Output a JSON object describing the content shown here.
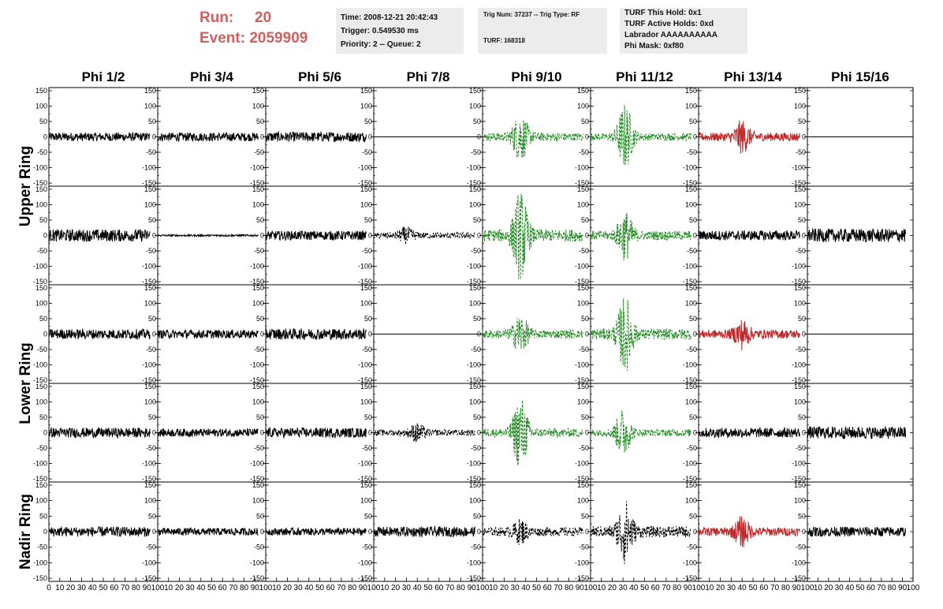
{
  "header": {
    "run_label": "Run:",
    "run_value": "20",
    "event_label": "Event:",
    "event_value": "2059909",
    "time": "Time: 2008-12-21 20:42:43",
    "trigger": "Trigger: 0.549530 ms",
    "priority": "Priority: 2 -- Queue: 2",
    "trig_num": "Trig Num: 37237 -- Trig Type: RF",
    "turf": "TURF: 168318",
    "turf_this_hold": "TURF This Hold: 0x1",
    "turf_active_holds": "TURF Active Holds: 0xd",
    "labrador": "Labrador AAAAAAAAAA",
    "phi_mask": "Phi Mask: 0xf80"
  },
  "chart_data": {
    "type": "line",
    "columns": [
      "Phi 1/2",
      "Phi 3/4",
      "Phi 5/6",
      "Phi 7/8",
      "Phi 9/10",
      "Phi 11/12",
      "Phi 13/14",
      "Phi 15/16"
    ],
    "ring_labels": [
      "Upper Ring",
      "Lower Ring",
      "Nadir Ring"
    ],
    "ylim": [
      -160,
      160
    ],
    "yticks": [
      -150,
      -100,
      -50,
      0,
      50,
      100,
      150
    ],
    "xlim": [
      0,
      100
    ],
    "xticks": [
      0,
      10,
      20,
      30,
      40,
      50,
      60,
      70,
      80,
      90,
      100
    ],
    "colors": {
      "normal": "#000000",
      "triggered": "#228b22",
      "masked": "#c0282a"
    },
    "rows": [
      {
        "ring": "Upper Ring",
        "panels": [
          {
            "style": "solid",
            "color": "normal",
            "amp": 14,
            "burst": 0,
            "center": 0
          },
          {
            "style": "solid",
            "color": "normal",
            "amp": 14,
            "burst": 0,
            "center": 0
          },
          {
            "style": "solid",
            "color": "normal",
            "amp": 16,
            "burst": 0,
            "center": 0
          },
          {
            "style": "flat",
            "color": "normal",
            "amp": 0,
            "burst": 0,
            "center": 0
          },
          {
            "style": "dashed",
            "color": "triggered",
            "amp": 14,
            "burst": 70,
            "center": 35
          },
          {
            "style": "dashed",
            "color": "triggered",
            "amp": 12,
            "burst": 100,
            "center": 32
          },
          {
            "style": "solid",
            "color": "masked",
            "amp": 14,
            "burst": 45,
            "center": 40
          },
          {
            "style": "flat",
            "color": "normal",
            "amp": 0,
            "burst": 0,
            "center": 0
          }
        ]
      },
      {
        "ring": "Upper Ring",
        "panels": [
          {
            "style": "solid",
            "color": "normal",
            "amp": 20,
            "burst": 0,
            "center": 0
          },
          {
            "style": "solid",
            "color": "normal",
            "amp": 3,
            "burst": 0,
            "center": 0
          },
          {
            "style": "solid",
            "color": "normal",
            "amp": 15,
            "burst": 0,
            "center": 0
          },
          {
            "style": "dashed",
            "color": "normal",
            "amp": 10,
            "burst": 20,
            "center": 30
          },
          {
            "style": "dashed",
            "color": "triggered",
            "amp": 20,
            "burst": 130,
            "center": 35
          },
          {
            "style": "dashed",
            "color": "triggered",
            "amp": 15,
            "burst": 70,
            "center": 32
          },
          {
            "style": "solid",
            "color": "normal",
            "amp": 16,
            "burst": 0,
            "center": 0
          },
          {
            "style": "solid",
            "color": "normal",
            "amp": 22,
            "burst": 0,
            "center": 0
          }
        ]
      },
      {
        "ring": "Lower Ring",
        "panels": [
          {
            "style": "solid",
            "color": "normal",
            "amp": 16,
            "burst": 0,
            "center": 0
          },
          {
            "style": "solid",
            "color": "normal",
            "amp": 14,
            "burst": 0,
            "center": 0
          },
          {
            "style": "solid",
            "color": "normal",
            "amp": 18,
            "burst": 0,
            "center": 0
          },
          {
            "style": "flat",
            "color": "normal",
            "amp": 0,
            "burst": 0,
            "center": 0
          },
          {
            "style": "dashed",
            "color": "triggered",
            "amp": 14,
            "burst": 55,
            "center": 35
          },
          {
            "style": "dashed",
            "color": "triggered",
            "amp": 18,
            "burst": 110,
            "center": 32
          },
          {
            "style": "solid",
            "color": "masked",
            "amp": 14,
            "burst": 40,
            "center": 40
          },
          {
            "style": "flat",
            "color": "normal",
            "amp": 0,
            "burst": 0,
            "center": 0
          }
        ]
      },
      {
        "ring": "Lower Ring",
        "panels": [
          {
            "style": "solid",
            "color": "normal",
            "amp": 16,
            "burst": 0,
            "center": 0
          },
          {
            "style": "solid",
            "color": "normal",
            "amp": 13,
            "burst": 0,
            "center": 0
          },
          {
            "style": "solid",
            "color": "normal",
            "amp": 16,
            "burst": 0,
            "center": 0
          },
          {
            "style": "dashed",
            "color": "normal",
            "amp": 10,
            "burst": 25,
            "center": 40
          },
          {
            "style": "dashed",
            "color": "triggered",
            "amp": 14,
            "burst": 110,
            "center": 35
          },
          {
            "style": "dashed",
            "color": "triggered",
            "amp": 12,
            "burst": 70,
            "center": 30
          },
          {
            "style": "solid",
            "color": "normal",
            "amp": 16,
            "burst": 0,
            "center": 0
          },
          {
            "style": "solid",
            "color": "normal",
            "amp": 20,
            "burst": 0,
            "center": 0
          }
        ]
      },
      {
        "ring": "Nadir Ring",
        "panels": [
          {
            "style": "solid",
            "color": "normal",
            "amp": 16,
            "burst": 0,
            "center": 0
          },
          {
            "style": "solid",
            "color": "normal",
            "amp": 12,
            "burst": 0,
            "center": 0
          },
          {
            "style": "solid",
            "color": "normal",
            "amp": 12,
            "burst": 0,
            "center": 0
          },
          {
            "style": "solid",
            "color": "normal",
            "amp": 16,
            "burst": 0,
            "center": 0
          },
          {
            "style": "dashed",
            "color": "normal",
            "amp": 14,
            "burst": 30,
            "center": 35
          },
          {
            "style": "dashed",
            "color": "normal",
            "amp": 18,
            "burst": 90,
            "center": 32
          },
          {
            "style": "solid",
            "color": "masked",
            "amp": 14,
            "burst": 40,
            "center": 40
          },
          {
            "style": "solid",
            "color": "normal",
            "amp": 16,
            "burst": 0,
            "center": 0
          }
        ]
      }
    ]
  }
}
